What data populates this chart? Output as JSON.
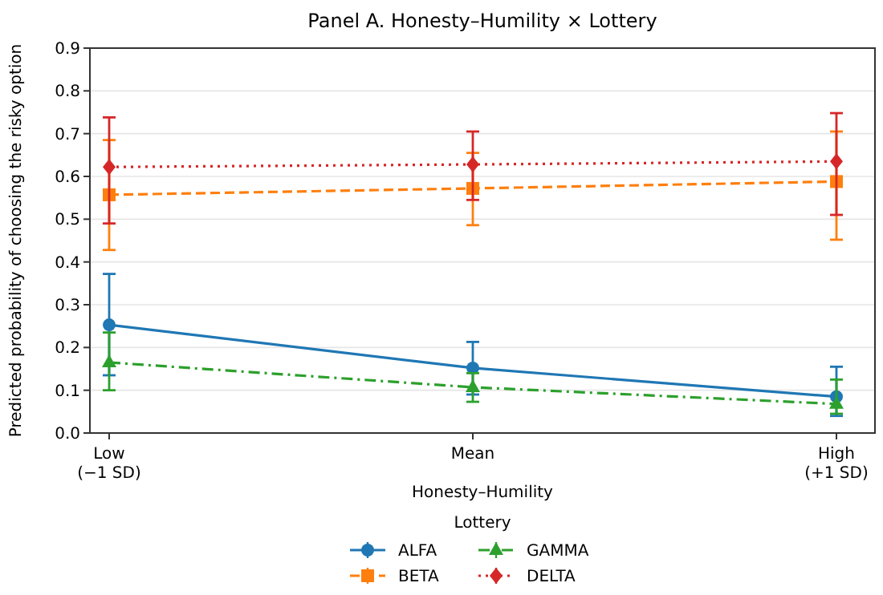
{
  "chart_data": {
    "type": "line",
    "title": "Panel A. Honesty–Humility × Lottery",
    "xlabel": "Honesty–Humility",
    "ylabel": "Predicted probability of choosing the risky option",
    "legend_title": "Lottery",
    "categories": [
      "Low\n(−1 SD)",
      "Mean",
      "High\n(+1 SD)"
    ],
    "series": [
      {
        "name": "ALFA",
        "color": "#1f77b4",
        "marker": "circle",
        "line_style": "solid",
        "values": [
          0.253,
          0.152,
          0.085
        ],
        "errors": [
          [
            0.135,
            0.372
          ],
          [
            0.09,
            0.213
          ],
          [
            0.04,
            0.155
          ]
        ]
      },
      {
        "name": "BETA",
        "color": "#ff7f0e",
        "marker": "square",
        "line_style": "dashed",
        "values": [
          0.557,
          0.572,
          0.588
        ],
        "errors": [
          [
            0.428,
            0.685
          ],
          [
            0.486,
            0.655
          ],
          [
            0.452,
            0.705
          ]
        ]
      },
      {
        "name": "GAMMA",
        "color": "#2ca02c",
        "marker": "triangle",
        "line_style": "dashdot",
        "values": [
          0.165,
          0.107,
          0.068
        ],
        "errors": [
          [
            0.1,
            0.235
          ],
          [
            0.073,
            0.14
          ],
          [
            0.045,
            0.125
          ]
        ]
      },
      {
        "name": "DELTA",
        "color": "#d62728",
        "marker": "diamond",
        "line_style": "dotted",
        "values": [
          0.622,
          0.628,
          0.635
        ],
        "errors": [
          [
            0.49,
            0.738
          ],
          [
            0.545,
            0.705
          ],
          [
            0.51,
            0.748
          ]
        ]
      }
    ],
    "ylim": [
      0,
      0.9
    ],
    "yticks": [
      {
        "value": 0,
        "label": "0.0"
      },
      0.1,
      0.2,
      0.3,
      0.4,
      0.5,
      0.6,
      0.7,
      0.8,
      0.9
    ],
    "grid": "y",
    "legend": "bottom"
  }
}
